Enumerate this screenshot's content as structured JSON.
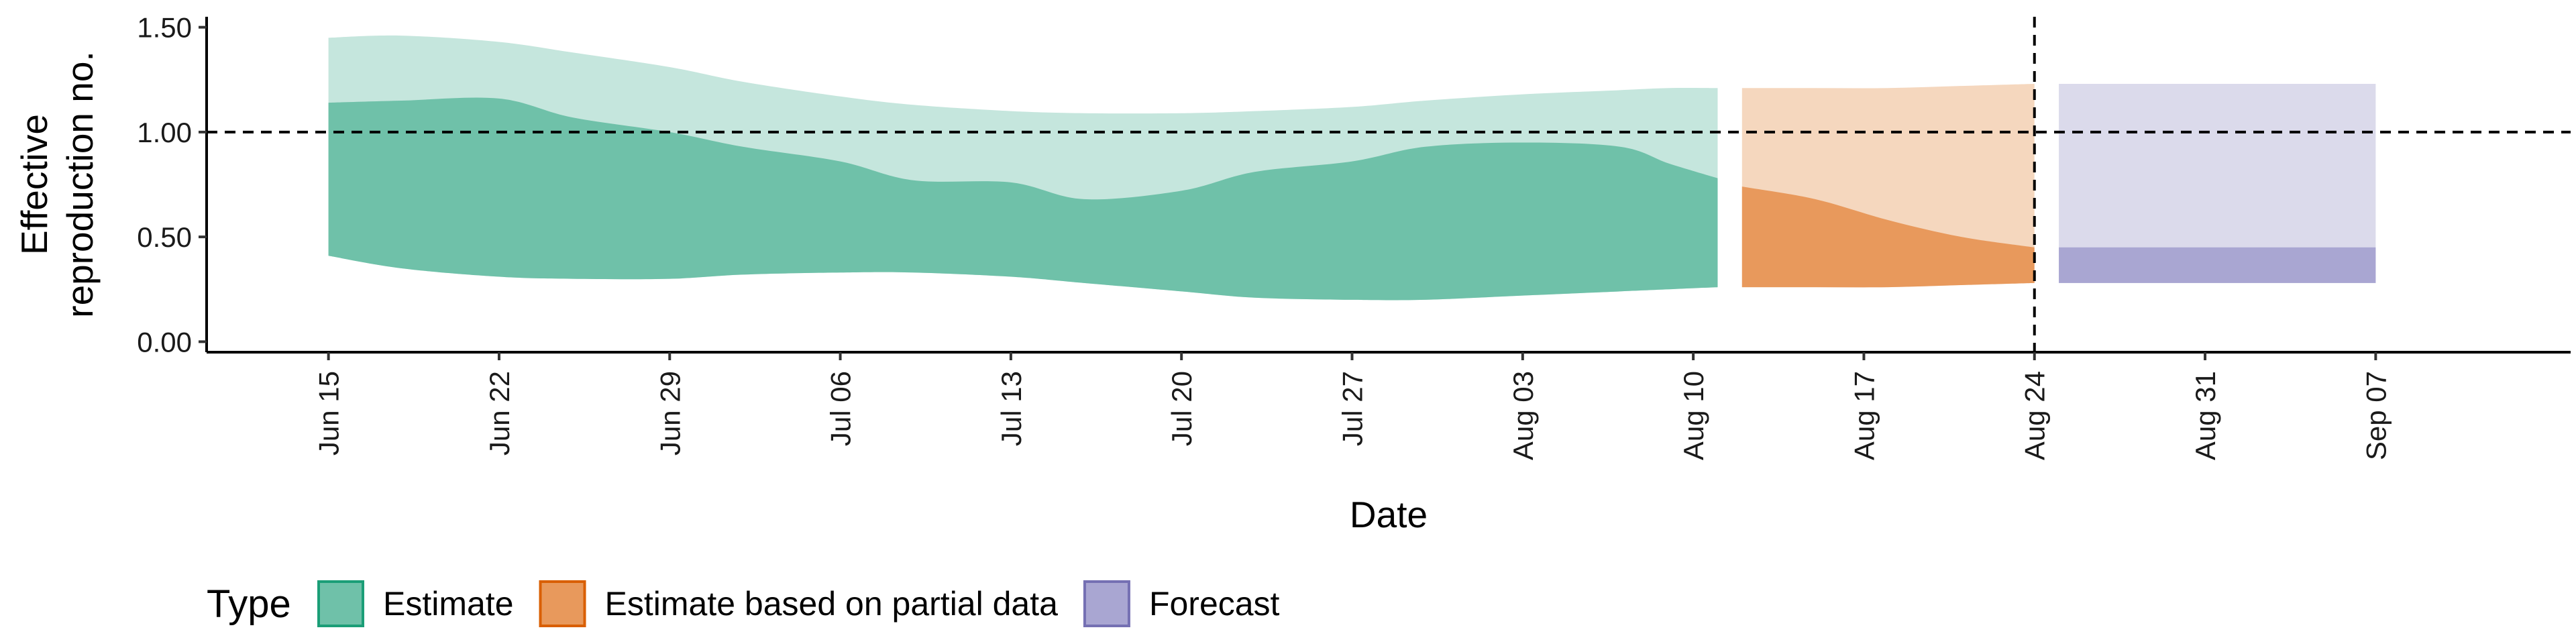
{
  "chart_data": {
    "type": "area",
    "xlabel": "Date",
    "ylabel": "Effective reproduction no.",
    "ylabel_lines": [
      "Effective",
      "reproduction no."
    ],
    "ylim": [
      -0.05,
      1.55
    ],
    "yticks": [
      {
        "value": 0.0,
        "label": "0.00"
      },
      {
        "value": 0.5,
        "label": "0.50"
      },
      {
        "value": 1.0,
        "label": "1.00"
      },
      {
        "value": 1.5,
        "label": "1.50"
      }
    ],
    "xlim": [
      "2020-06-10",
      "2020-09-15"
    ],
    "xticks": [
      {
        "date": "2020-06-15",
        "label": "Jun 15"
      },
      {
        "date": "2020-06-22",
        "label": "Jun 22"
      },
      {
        "date": "2020-06-29",
        "label": "Jun 29"
      },
      {
        "date": "2020-07-06",
        "label": "Jul 06"
      },
      {
        "date": "2020-07-13",
        "label": "Jul 13"
      },
      {
        "date": "2020-07-20",
        "label": "Jul 20"
      },
      {
        "date": "2020-07-27",
        "label": "Jul 27"
      },
      {
        "date": "2020-08-03",
        "label": "Aug 03"
      },
      {
        "date": "2020-08-10",
        "label": "Aug 10"
      },
      {
        "date": "2020-08-17",
        "label": "Aug 17"
      },
      {
        "date": "2020-08-24",
        "label": "Aug 24"
      },
      {
        "date": "2020-08-31",
        "label": "Aug 31"
      },
      {
        "date": "2020-09-07",
        "label": "Sep 07"
      }
    ],
    "reference_line": {
      "y": 1.0,
      "style": "dashed"
    },
    "vertical_line": {
      "x": "2020-08-24",
      "style": "dashed"
    },
    "grid": false,
    "legend": {
      "title": "Type",
      "position": "bottom-left",
      "entries": [
        {
          "label": "Estimate",
          "fill": "#6fc1a9",
          "stroke": "#1b9e77"
        },
        {
          "label": "Estimate based on partial data",
          "fill": "#e8995c",
          "stroke": "#d95f02"
        },
        {
          "label": "Forecast",
          "fill": "#a9a6d2",
          "stroke": "#7570b3"
        }
      ]
    },
    "series": [
      {
        "name": "Estimate",
        "colors": {
          "outer": "#c5e6dd",
          "inner": "#6fc1a9"
        },
        "x": [
          "2020-06-15",
          "2020-06-18",
          "2020-06-22",
          "2020-06-25",
          "2020-06-29",
          "2020-07-02",
          "2020-07-06",
          "2020-07-09",
          "2020-07-13",
          "2020-07-16",
          "2020-07-20",
          "2020-07-23",
          "2020-07-27",
          "2020-07-30",
          "2020-08-03",
          "2020-08-07",
          "2020-08-09",
          "2020-08-11"
        ],
        "outer_lo": [
          0.41,
          0.35,
          0.31,
          0.3,
          0.3,
          0.32,
          0.33,
          0.33,
          0.31,
          0.28,
          0.24,
          0.21,
          0.2,
          0.2,
          0.22,
          0.24,
          0.25,
          0.26
        ],
        "outer_hi": [
          1.45,
          1.46,
          1.43,
          1.38,
          1.31,
          1.24,
          1.17,
          1.13,
          1.1,
          1.09,
          1.09,
          1.1,
          1.12,
          1.15,
          1.18,
          1.2,
          1.21,
          1.21
        ],
        "inner_lo": [
          0.41,
          0.35,
          0.31,
          0.3,
          0.3,
          0.32,
          0.33,
          0.33,
          0.31,
          0.28,
          0.24,
          0.21,
          0.2,
          0.2,
          0.22,
          0.24,
          0.25,
          0.26
        ],
        "inner_hi": [
          1.14,
          1.15,
          1.16,
          1.07,
          1.0,
          0.93,
          0.86,
          0.77,
          0.76,
          0.68,
          0.72,
          0.81,
          0.86,
          0.93,
          0.95,
          0.93,
          0.85,
          0.78
        ]
      },
      {
        "name": "Estimate based on partial data",
        "colors": {
          "outer": "#f5d7be",
          "inner": "#e8995c"
        },
        "x": [
          "2020-08-12",
          "2020-08-15",
          "2020-08-18",
          "2020-08-21",
          "2020-08-24"
        ],
        "outer_lo": [
          0.26,
          0.26,
          0.26,
          0.27,
          0.28
        ],
        "outer_hi": [
          1.21,
          1.21,
          1.21,
          1.22,
          1.23
        ],
        "inner_lo": [
          0.26,
          0.26,
          0.26,
          0.27,
          0.28
        ],
        "inner_hi": [
          0.74,
          0.68,
          0.58,
          0.5,
          0.45
        ]
      },
      {
        "name": "Forecast",
        "colors": {
          "outer": "#dbdaeb",
          "inner": "#a9a6d2"
        },
        "x": [
          "2020-08-25",
          "2020-09-07"
        ],
        "outer_lo": [
          0.28,
          0.28
        ],
        "outer_hi": [
          1.23,
          1.23
        ],
        "inner_lo": [
          0.28,
          0.28
        ],
        "inner_hi": [
          0.45,
          0.45
        ]
      }
    ]
  }
}
